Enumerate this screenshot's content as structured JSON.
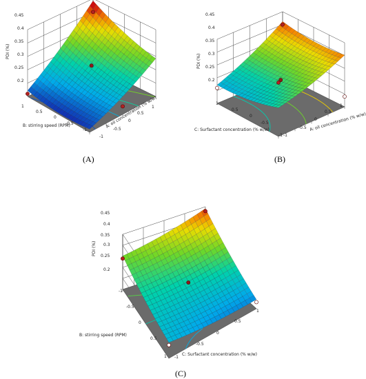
{
  "chart_data": [
    {
      "type": "surface",
      "panel_label": "(A)",
      "zlabel": "PDI (%)",
      "xlabel": "A: oil concentration (% w/w)",
      "ylabel": "B: stirring speed (RPM)",
      "zlim": [
        0.2,
        0.45
      ],
      "z_ticks": [
        "0.2",
        "0.25",
        "0.3",
        "0.35",
        "0.4",
        "0.45"
      ],
      "x_ticks": [
        "-1",
        "-0.5",
        "0",
        "0.5",
        "1"
      ],
      "y_ticks": [
        "-1",
        "-0.5",
        "0",
        "0.5",
        "1"
      ],
      "grid": "on",
      "surface_corners": {
        "x_-1_y_1": 0.21,
        "x_1_y_1": 0.43,
        "x_1_y_-1": 0.33,
        "x_-1_y_-1": 0.2
      },
      "design_points": [
        {
          "x": 0,
          "y": 0,
          "z": 0.32
        },
        {
          "x": 1,
          "y": 1,
          "z": 0.4
        },
        {
          "x": -1,
          "y": 1,
          "z": 0.21
        },
        {
          "x": 0,
          "y": -1,
          "z": 0.23
        }
      ]
    },
    {
      "type": "surface",
      "panel_label": "(B)",
      "zlabel": "PDI (%)",
      "xlabel": "A: oil concentration (% w/w)",
      "ylabel": "C: Surfactant concentration (% w/w)",
      "zlim": [
        0.2,
        0.45
      ],
      "z_ticks": [
        "0.2",
        "0.25",
        "0.3",
        "0.35",
        "0.4",
        "0.45"
      ],
      "x_ticks": [
        "-1",
        "-0.5",
        "0",
        "0.5",
        "1"
      ],
      "y_ticks": [
        "-1",
        "-0.5",
        "0",
        "0.5",
        "1"
      ],
      "grid": "on",
      "surface_corners": {
        "x_-1_y_1": 0.26,
        "x_1_y_1": 0.4,
        "x_1_y_-1": 0.39,
        "x_-1_y_-1": 0.3
      },
      "design_points": [
        {
          "x": 0,
          "y": 0,
          "z": 0.3
        },
        {
          "x": 1,
          "y": 1,
          "z": 0.4
        },
        {
          "x": -1,
          "y": 1,
          "z": 0.26
        },
        {
          "x": -1,
          "y": -1,
          "z": 0.41
        },
        {
          "x": 1,
          "y": -1,
          "z": 0.24
        }
      ]
    },
    {
      "type": "surface",
      "panel_label": "(C)",
      "zlabel": "PDI (%)",
      "xlabel": "C: Surfactant concentration (% w/w)",
      "ylabel": "B: stirring speed (RPM)",
      "zlim": [
        0.2,
        0.45
      ],
      "z_ticks": [
        "0.2",
        "0.25",
        "0.3",
        "0.35",
        "0.4",
        "0.45"
      ],
      "x_ticks": [
        "-1",
        "-0.5",
        "0",
        "0.5",
        "1"
      ],
      "y_ticks": [
        "-1",
        "-0.5",
        "0",
        "0.5",
        "1"
      ],
      "grid": "on",
      "surface_corners": {
        "x_-1_y_-1": 0.34,
        "x_1_y_-1": 0.43,
        "x_1_y_1": 0.23,
        "x_-1_y_1": 0.26
      },
      "design_points": [
        {
          "x": 0,
          "y": 0,
          "z": 0.3
        },
        {
          "x": 1,
          "y": -1,
          "z": 0.43
        },
        {
          "x": -1,
          "y": -1,
          "z": 0.34
        },
        {
          "x": 1,
          "y": 1,
          "z": 0.23
        },
        {
          "x": -1,
          "y": 1,
          "z": 0.26
        }
      ]
    }
  ]
}
